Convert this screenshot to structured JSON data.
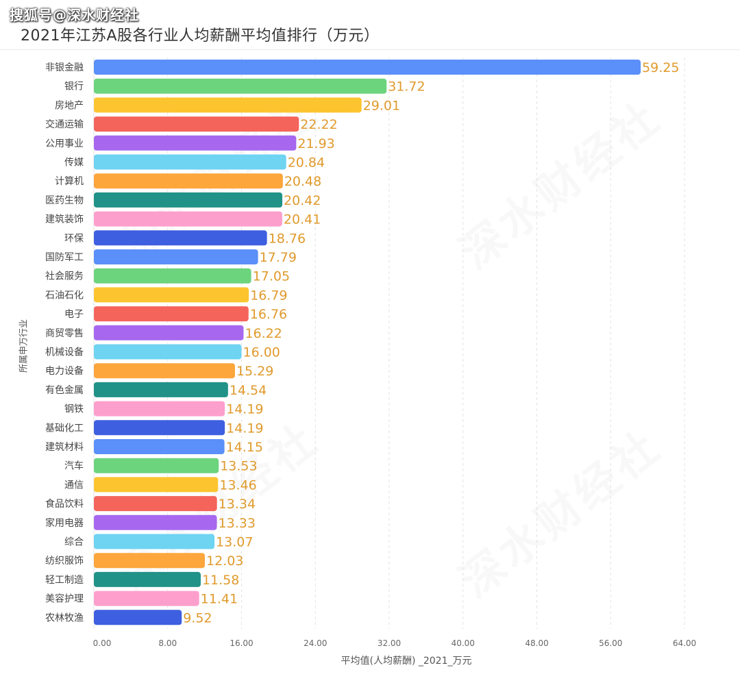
{
  "watermark_top": "搜狐号@深水财经社",
  "background_watermark": "深水财经社",
  "chart_data": {
    "type": "bar",
    "orientation": "horizontal",
    "title": "2021年江苏A股各行业人均薪酬平均值排行（万元）",
    "xlabel": "平均值(人均薪酬) _2021_万元",
    "ylabel": "所属申万行业",
    "xlim": [
      0,
      64
    ],
    "xticks": [
      "0.00",
      "8.00",
      "16.00",
      "24.00",
      "32.00",
      "40.00",
      "48.00",
      "56.00",
      "64.00"
    ],
    "grid": true,
    "categories": [
      "非银金融",
      "银行",
      "房地产",
      "交通运输",
      "公用事业",
      "传媒",
      "计算机",
      "医药生物",
      "建筑装饰",
      "环保",
      "国防军工",
      "社会服务",
      "石油石化",
      "电子",
      "商贸零售",
      "机械设备",
      "电力设备",
      "有色金属",
      "钢铁",
      "基础化工",
      "建筑材料",
      "汽车",
      "通信",
      "食品饮料",
      "家用电器",
      "综合",
      "纺织服饰",
      "轻工制造",
      "美容护理",
      "农林牧渔"
    ],
    "values": [
      59.25,
      31.72,
      29.01,
      22.22,
      21.93,
      20.84,
      20.48,
      20.42,
      20.41,
      18.76,
      17.79,
      17.05,
      16.79,
      16.76,
      16.22,
      16.0,
      15.29,
      14.54,
      14.19,
      14.19,
      14.15,
      13.53,
      13.46,
      13.34,
      13.33,
      13.07,
      12.03,
      11.58,
      11.41,
      9.52
    ],
    "data_labels": [
      "59.25",
      "31.72",
      "29.01",
      "22.22",
      "21.93",
      "20.84",
      "20.48",
      "20.42",
      "20.41",
      "18.76",
      "17.79",
      "17.05",
      "16.79",
      "16.76",
      "16.22",
      "16.00",
      "15.29",
      "14.54",
      "14.19",
      "14.19",
      "14.15",
      "13.53",
      "13.46",
      "13.34",
      "13.33",
      "13.07",
      "12.03",
      "11.58",
      "11.41",
      "9.52"
    ],
    "palette": [
      "#5b8ff9",
      "#6dd47e",
      "#fcc530",
      "#f4645b",
      "#a768ef",
      "#6fd3f2",
      "#fca63c",
      "#219287",
      "#fd9fcd",
      "#3e5fe0"
    ],
    "label_color": "#e09a2c"
  }
}
